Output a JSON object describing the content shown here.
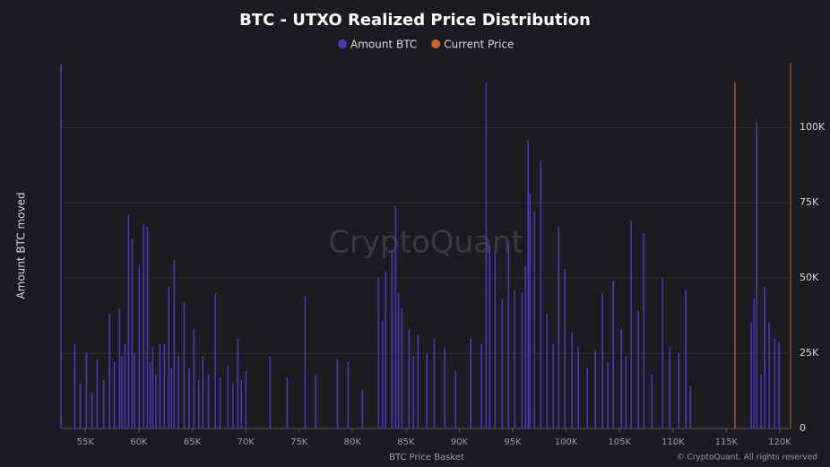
{
  "chart_data": {
    "type": "bar",
    "title": "BTC - UTXO Realized Price Distribution",
    "watermark": "CryptoQuant",
    "footer": "© CryptoQuant. All rights reserved",
    "x_label": "BTC Price Basket",
    "y_label": "Amount BTC moved",
    "xlim": [
      52700,
      120840
    ],
    "ylim": [
      0,
      121500
    ],
    "xticks": [
      {
        "value": 55000,
        "label": "55K"
      },
      {
        "value": 60000,
        "label": "60K"
      },
      {
        "value": 65000,
        "label": "65K"
      },
      {
        "value": 70000,
        "label": "70K"
      },
      {
        "value": 75000,
        "label": "75K"
      },
      {
        "value": 80000,
        "label": "80K"
      },
      {
        "value": 85000,
        "label": "85K"
      },
      {
        "value": 90000,
        "label": "90K"
      },
      {
        "value": 95000,
        "label": "95K"
      },
      {
        "value": 100000,
        "label": "100K"
      },
      {
        "value": 105000,
        "label": "105K"
      },
      {
        "value": 110000,
        "label": "110K"
      },
      {
        "value": 115000,
        "label": "115K"
      },
      {
        "value": 120000,
        "label": "120K"
      }
    ],
    "yticks": [
      0,
      {
        "value": 25000,
        "label": "25K"
      },
      {
        "value": 50000,
        "label": "50K"
      },
      {
        "value": 75000,
        "label": "75K"
      },
      {
        "value": 100000,
        "label": "100K"
      }
    ],
    "grid": true,
    "legend": "top",
    "series": [
      {
        "name": "Amount BTC",
        "color": "#4b36b8",
        "x": [
          52700,
          53990,
          54500,
          55080,
          55600,
          56090,
          56700,
          57260,
          57700,
          58190,
          58400,
          58690,
          59030,
          59360,
          59600,
          60030,
          60450,
          60790,
          61050,
          61290,
          61600,
          61960,
          62380,
          62800,
          63050,
          63300,
          63700,
          64230,
          64700,
          65150,
          65600,
          65990,
          66500,
          67160,
          67600,
          68340,
          68800,
          69260,
          69600,
          70020,
          72280,
          73880,
          75560,
          76560,
          78580,
          79580,
          80930,
          82430,
          82800,
          83100,
          83690,
          84030,
          84300,
          84620,
          85290,
          85700,
          86130,
          86960,
          87640,
          88640,
          89650,
          91070,
          92080,
          92500,
          92840,
          93340,
          94010,
          94600,
          95180,
          95860,
          96190,
          96440,
          96610,
          97030,
          97620,
          98200,
          98790,
          99300,
          99880,
          100550,
          101140,
          101980,
          102730,
          103400,
          103900,
          104410,
          105170,
          105600,
          106090,
          106760,
          107270,
          108020,
          109030,
          109700,
          110540,
          111210,
          111630,
          117330,
          117580,
          117840,
          118250,
          118590,
          119010,
          119510,
          119930
        ],
        "values": [
          121000,
          28000,
          15000,
          25000,
          12000,
          23000,
          16000,
          38000,
          22000,
          40000,
          24000,
          28000,
          71000,
          63000,
          25000,
          54000,
          68000,
          67000,
          22000,
          27000,
          18000,
          28000,
          28000,
          47000,
          20000,
          56000,
          24000,
          42000,
          20000,
          33000,
          16000,
          24000,
          18000,
          45000,
          17000,
          21000,
          15000,
          30000,
          16000,
          19000,
          24000,
          17000,
          44000,
          18000,
          23000,
          22000,
          13000,
          50000,
          36000,
          52000,
          59000,
          74000,
          45000,
          40000,
          33000,
          24000,
          31000,
          25000,
          30000,
          27000,
          19000,
          30000,
          28000,
          115000,
          61000,
          59000,
          43000,
          62000,
          46000,
          45000,
          54000,
          96000,
          78000,
          72000,
          89000,
          38000,
          28000,
          67000,
          53000,
          32000,
          27000,
          20000,
          26000,
          45000,
          22000,
          49000,
          33000,
          24000,
          69000,
          39000,
          65000,
          18000,
          50000,
          27000,
          25000,
          46000,
          14000,
          35000,
          43000,
          102000,
          18000,
          47000,
          35000,
          30000,
          29000
        ]
      },
      {
        "name": "Current Price",
        "color": "#c8632a",
        "x": [
          115800
        ],
        "values": [
          115000
        ]
      }
    ]
  }
}
